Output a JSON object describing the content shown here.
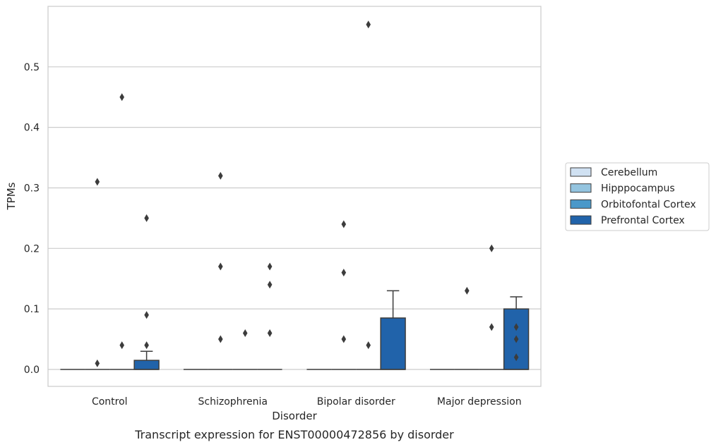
{
  "chart_data": {
    "type": "box",
    "caption": "Transcript expression for ENST00000472856 by disorder",
    "xlabel": "Disorder",
    "ylabel": "TPMs",
    "ylim": [
      -0.028,
      0.6
    ],
    "yticks": [
      0.0,
      0.1,
      0.2,
      0.3,
      0.4,
      0.5
    ],
    "ytick_labels": [
      "0.0",
      "0.1",
      "0.2",
      "0.3",
      "0.4",
      "0.5"
    ],
    "grid": "horizontal",
    "legend_position": "right",
    "categories": [
      "Control",
      "Schizophrenia",
      "Bipolar disorder",
      "Major depression"
    ],
    "series": [
      {
        "name": "Cerebellum",
        "color": "#d0e1f2",
        "boxes": [
          {
            "q1": 0,
            "median": 0,
            "q3": 0,
            "whisker_low": 0,
            "whisker_high": 0,
            "outliers": []
          },
          {
            "q1": 0,
            "median": 0,
            "q3": 0,
            "whisker_low": 0,
            "whisker_high": 0,
            "outliers": []
          },
          {
            "q1": 0,
            "median": 0,
            "q3": 0,
            "whisker_low": 0,
            "whisker_high": 0,
            "outliers": []
          },
          {
            "q1": 0,
            "median": 0,
            "q3": 0,
            "whisker_low": 0,
            "whisker_high": 0,
            "outliers": []
          }
        ]
      },
      {
        "name": "Hipppocampus",
        "color": "#94c4df",
        "boxes": [
          {
            "q1": 0,
            "median": 0,
            "q3": 0,
            "whisker_low": 0,
            "whisker_high": 0,
            "outliers": [
              0.31,
              0.01
            ]
          },
          {
            "q1": 0,
            "median": 0,
            "q3": 0,
            "whisker_low": 0,
            "whisker_high": 0,
            "outliers": [
              0.32,
              0.17,
              0.05
            ]
          },
          {
            "q1": 0,
            "median": 0,
            "q3": 0,
            "whisker_low": 0,
            "whisker_high": 0,
            "outliers": [
              0.24,
              0.16,
              0.05
            ]
          },
          {
            "q1": 0,
            "median": 0,
            "q3": 0,
            "whisker_low": 0,
            "whisker_high": 0,
            "outliers": [
              0.13
            ]
          }
        ]
      },
      {
        "name": "Orbitofontal Cortex",
        "color": "#4a98c9",
        "boxes": [
          {
            "q1": 0,
            "median": 0,
            "q3": 0,
            "whisker_low": 0,
            "whisker_high": 0,
            "outliers": [
              0.45,
              0.04
            ]
          },
          {
            "q1": 0,
            "median": 0,
            "q3": 0,
            "whisker_low": 0,
            "whisker_high": 0,
            "outliers": [
              0.06
            ]
          },
          {
            "q1": 0,
            "median": 0,
            "q3": 0,
            "whisker_low": 0,
            "whisker_high": 0,
            "outliers": [
              0.57,
              0.04
            ]
          },
          {
            "q1": 0,
            "median": 0,
            "q3": 0,
            "whisker_low": 0,
            "whisker_high": 0,
            "outliers": [
              0.2,
              0.07
            ]
          }
        ]
      },
      {
        "name": "Prefrontal Cortex",
        "color": "#2163aa",
        "boxes": [
          {
            "q1": 0,
            "median": 0,
            "q3": 0.015,
            "whisker_low": 0,
            "whisker_high": 0.03,
            "outliers": [
              0.25,
              0.09,
              0.04
            ]
          },
          {
            "q1": 0,
            "median": 0,
            "q3": 0,
            "whisker_low": 0,
            "whisker_high": 0,
            "outliers": [
              0.17,
              0.14,
              0.06
            ]
          },
          {
            "q1": 0,
            "median": 0,
            "q3": 0.085,
            "whisker_low": 0,
            "whisker_high": 0.13,
            "outliers": []
          },
          {
            "q1": 0,
            "median": 0,
            "q3": 0.1,
            "whisker_low": 0,
            "whisker_high": 0.12,
            "outliers": [
              0.07,
              0.05,
              0.02
            ]
          }
        ]
      }
    ]
  }
}
